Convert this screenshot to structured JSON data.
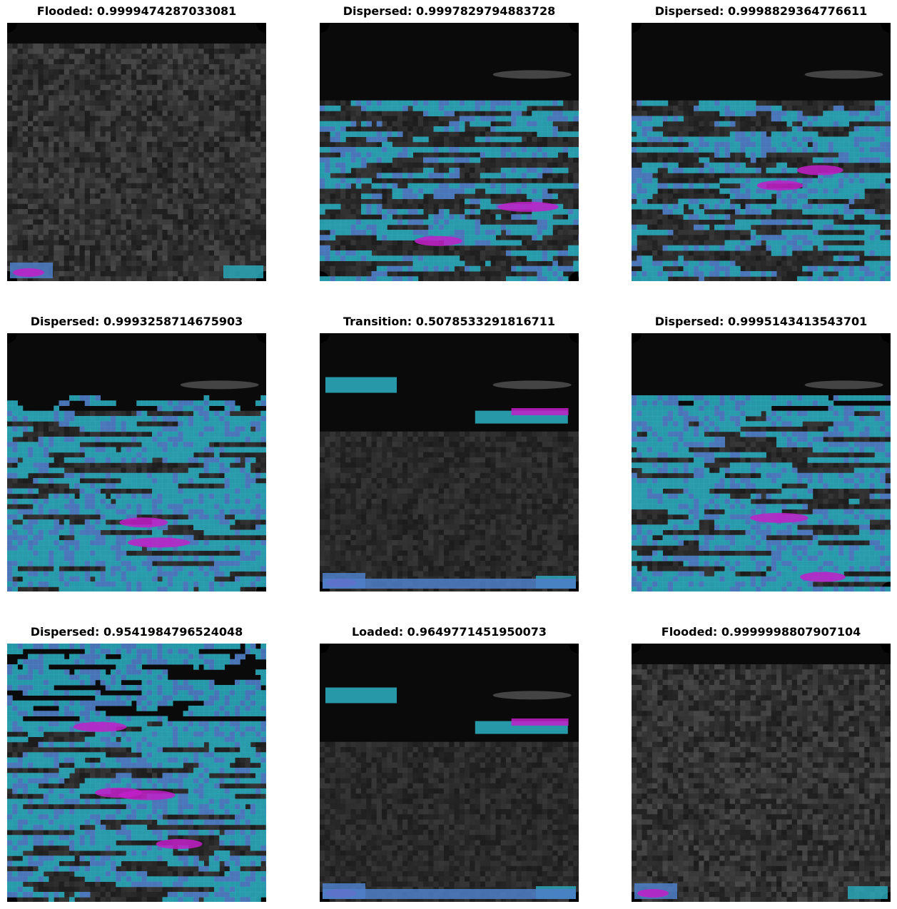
{
  "figure": {
    "panels": [
      {
        "title": "Flooded: 0.9999474287033081",
        "label": "Flooded",
        "score": 0.9999474287033081,
        "scene": "water-full"
      },
      {
        "title": "Dispersed: 0.9997829794883728",
        "label": "Dispersed",
        "score": 0.9997829794883728,
        "scene": "overlay-medium"
      },
      {
        "title": "Dispersed: 0.9998829364776611",
        "label": "Dispersed",
        "score": 0.9998829364776611,
        "scene": "overlay-medium"
      },
      {
        "title": "Dispersed: 0.9993258714675903",
        "label": "Dispersed",
        "score": 0.9993258714675903,
        "scene": "overlay-dense"
      },
      {
        "title": "Transition: 0.5078533291816711",
        "label": "Transition",
        "score": 0.5078533291816711,
        "scene": "water-lower"
      },
      {
        "title": "Dispersed: 0.9995143413543701",
        "label": "Dispersed",
        "score": 0.9995143413543701,
        "scene": "overlay-dense"
      },
      {
        "title": "Dispersed: 0.9541984796524048",
        "label": "Dispersed",
        "score": 0.9541984796524048,
        "scene": "overlay-full"
      },
      {
        "title": "Loaded: 0.9649771451950073",
        "label": "Loaded",
        "score": 0.9649771451950073,
        "scene": "water-lower"
      },
      {
        "title": "Flooded: 0.9999998807907104",
        "label": "Flooded",
        "score": 0.9999998807907104,
        "scene": "water-full"
      }
    ],
    "colors": {
      "overlay_cyan": "#2aa7b8",
      "overlay_blue": "#4f7fc9",
      "overlay_magenta": "#c21fc9",
      "background": "#0a0a0a"
    }
  }
}
